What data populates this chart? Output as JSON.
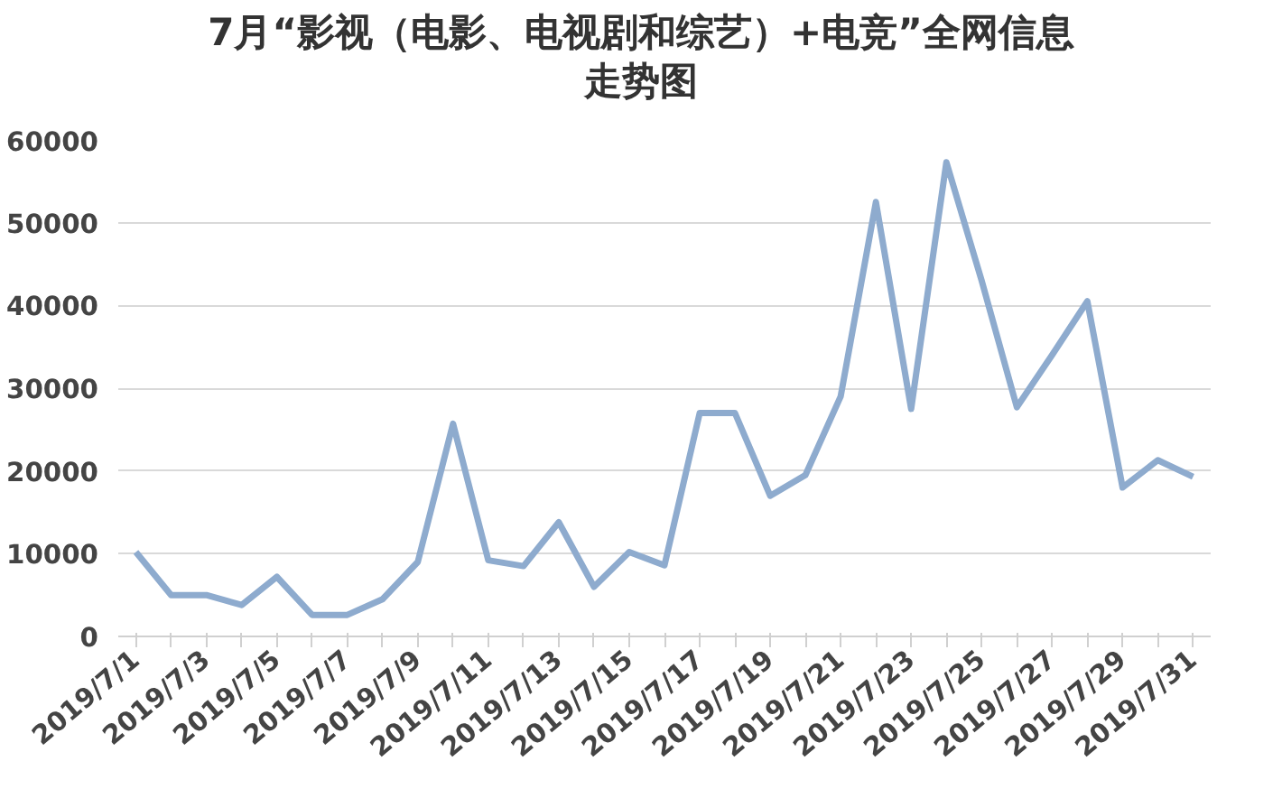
{
  "chart_data": {
    "type": "line",
    "title": "7月“影视（电影、电视剧和综艺）+电竞”全网信息走势图",
    "categories": [
      "2019/7/1",
      null,
      "2019/7/3",
      null,
      "2019/7/5",
      null,
      "2019/7/7",
      null,
      "2019/7/9",
      null,
      "2019/7/11",
      null,
      "2019/7/13",
      null,
      "2019/7/15",
      null,
      "2019/7/17",
      null,
      "2019/7/19",
      null,
      "2019/7/21",
      null,
      "2019/7/23",
      null,
      "2019/7/25",
      null,
      "2019/7/27",
      null,
      "2019/7/29",
      null,
      "2019/7/31"
    ],
    "series": [
      {
        "color": "#8eabce",
        "values": [
          10200,
          5000,
          5000,
          3800,
          7200,
          2600,
          2600,
          4500,
          9000,
          25700,
          9200,
          8500,
          13800,
          6000,
          10200,
          8600,
          27000,
          27000,
          17000,
          19500,
          29000,
          52500,
          27500,
          57300,
          43000,
          27700,
          34000,
          40500,
          18000,
          21300,
          19300
        ]
      }
    ],
    "ylim": [
      0,
      60000
    ],
    "yticks": [
      0,
      10000,
      20000,
      30000,
      40000,
      50000,
      60000
    ],
    "grid": "y",
    "marker": "none",
    "line_style": "solid"
  }
}
